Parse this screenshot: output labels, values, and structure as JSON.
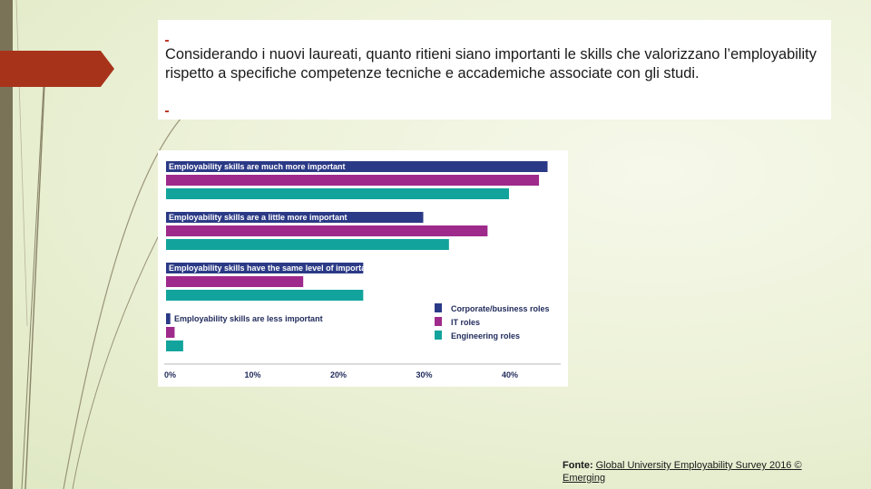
{
  "question": {
    "text": "Considerando i nuovi laureati, quanto ritieni siano importanti le skills che valorizzano l’employability rispetto a specifiche competenze tecniche e accademiche associate con gli studi."
  },
  "source": {
    "label": "Fonte:",
    "text": "Global University Employability Survey 2016 © Emerging"
  },
  "colors": {
    "corporate": "#2b3a86",
    "it": "#9e2a8b",
    "engineering": "#12a49c",
    "accent": "#a8331b",
    "band": "#7a7358"
  },
  "chart_data": {
    "type": "bar",
    "orientation": "horizontal",
    "categories": [
      "Employability skills are much more important",
      "Employability skills are a little more important",
      "Employability skills have the same level of importance",
      "Employability skills are less important"
    ],
    "series": [
      {
        "name": "Corporate/business roles",
        "values": [
          44.5,
          30,
          23,
          0.5
        ]
      },
      {
        "name": "IT roles",
        "values": [
          43.5,
          37.5,
          16,
          1
        ]
      },
      {
        "name": "Engineering roles",
        "values": [
          40,
          33,
          23,
          2
        ]
      }
    ],
    "xlim": [
      0,
      45
    ],
    "xticks": [
      "0%",
      "10%",
      "20%",
      "30%",
      "40%"
    ],
    "legend_position": "bottom-right",
    "grid": false
  }
}
